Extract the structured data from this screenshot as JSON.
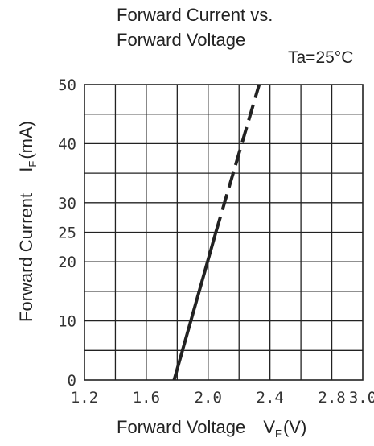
{
  "chart_data": {
    "type": "line",
    "title_line1": "Forward Current vs.",
    "title_line2": "Forward Voltage",
    "condition": "Ta=25°C",
    "xlabel": "Forward Voltage",
    "xlabel_symbol": "V",
    "xlabel_sub": "F",
    "xlabel_unit": "(V)",
    "ylabel": "Forward Current",
    "ylabel_symbol": "I",
    "ylabel_sub": "F",
    "ylabel_unit": "(mA)",
    "xlim": [
      1.2,
      3.0
    ],
    "ylim": [
      0,
      50
    ],
    "x_ticks": [
      "1.2",
      "1.6",
      "2.0",
      "2.4",
      "2.8",
      "3.0"
    ],
    "x_tick_values": [
      1.2,
      1.6,
      2.0,
      2.4,
      2.8,
      3.0
    ],
    "y_ticks": [
      "0",
      "10",
      "20",
      "25",
      "30",
      "40",
      "50"
    ],
    "y_tick_values": [
      0,
      10,
      20,
      25,
      30,
      40,
      50
    ],
    "x_grid_step": 0.2,
    "y_grid_step": 5,
    "grid": true,
    "color": "#222222",
    "series": [
      {
        "style": "solid",
        "x": [
          1.78,
          2.05
        ],
        "y": [
          0,
          25
        ]
      },
      {
        "style": "dashed",
        "x": [
          2.05,
          2.33
        ],
        "y": [
          25,
          50
        ]
      }
    ]
  }
}
